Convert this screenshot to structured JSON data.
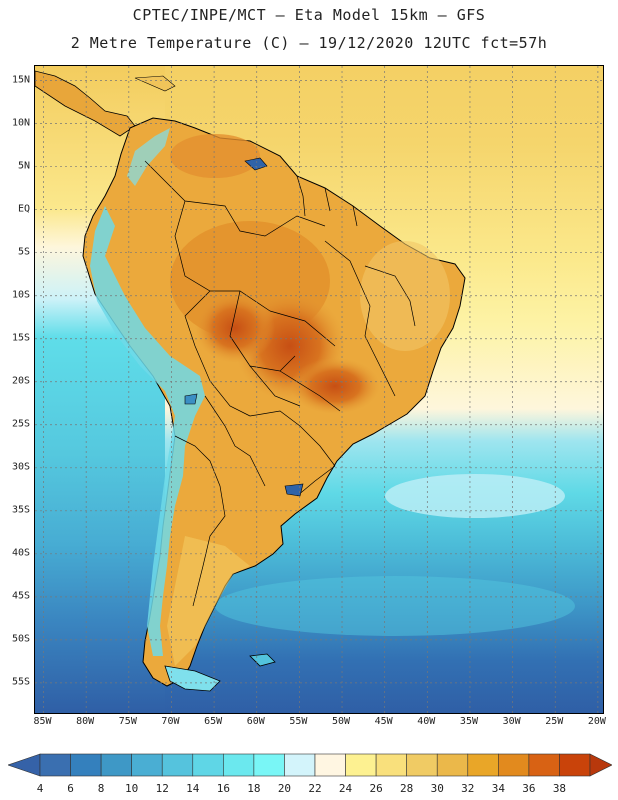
{
  "title_line1": "CPTEC/INPE/MCT –  Eta Model 15km – GFS",
  "title_line2": "2 Metre Temperature (C) – 19/12/2020 12UTC fct=57h",
  "lat_labels": [
    "15N",
    "10N",
    "5N",
    "EQ",
    "5S",
    "10S",
    "15S",
    "20S",
    "25S",
    "30S",
    "35S",
    "40S",
    "45S",
    "50S",
    "55S"
  ],
  "lon_labels": [
    "85W",
    "80W",
    "75W",
    "70W",
    "65W",
    "60W",
    "55W",
    "50W",
    "45W",
    "40W",
    "35W",
    "30W",
    "25W",
    "20W"
  ],
  "colorbar": {
    "labels": [
      "4",
      "6",
      "8",
      "10",
      "12",
      "14",
      "16",
      "18",
      "20",
      "22",
      "24",
      "26",
      "28",
      "30",
      "32",
      "34",
      "36",
      "38"
    ],
    "colors": [
      "#3a6fb0",
      "#3480bd",
      "#3e98c6",
      "#4aaed3",
      "#55c3dd",
      "#5fd6e6",
      "#6be8ee",
      "#79f6f6",
      "#d3f4fb",
      "#fff6e2",
      "#fdf191",
      "#f9e07c",
      "#f0cb64",
      "#ebb84a",
      "#e9a628",
      "#e28a1e",
      "#d86214",
      "#c9430a"
    ],
    "low_color": "#3562a8",
    "high_color": "#b8380c"
  },
  "map_colors": {
    "ocean_cold": "#2f63a8",
    "ocean_cool": "#3b8fc4",
    "ocean_mid": "#4cbcd8",
    "ocean_cyan": "#5ee0ea",
    "ocean_pale": "#d6f3f8",
    "ocean_warm": "#fbeea0",
    "ocean_warmer": "#f5d870",
    "ocean_hot": "#f0cc60",
    "land_warm": "#e8a63a",
    "land_hot": "#d97a22",
    "land_hottest": "#c9561a",
    "andes_cold": "#7fe6ee"
  }
}
